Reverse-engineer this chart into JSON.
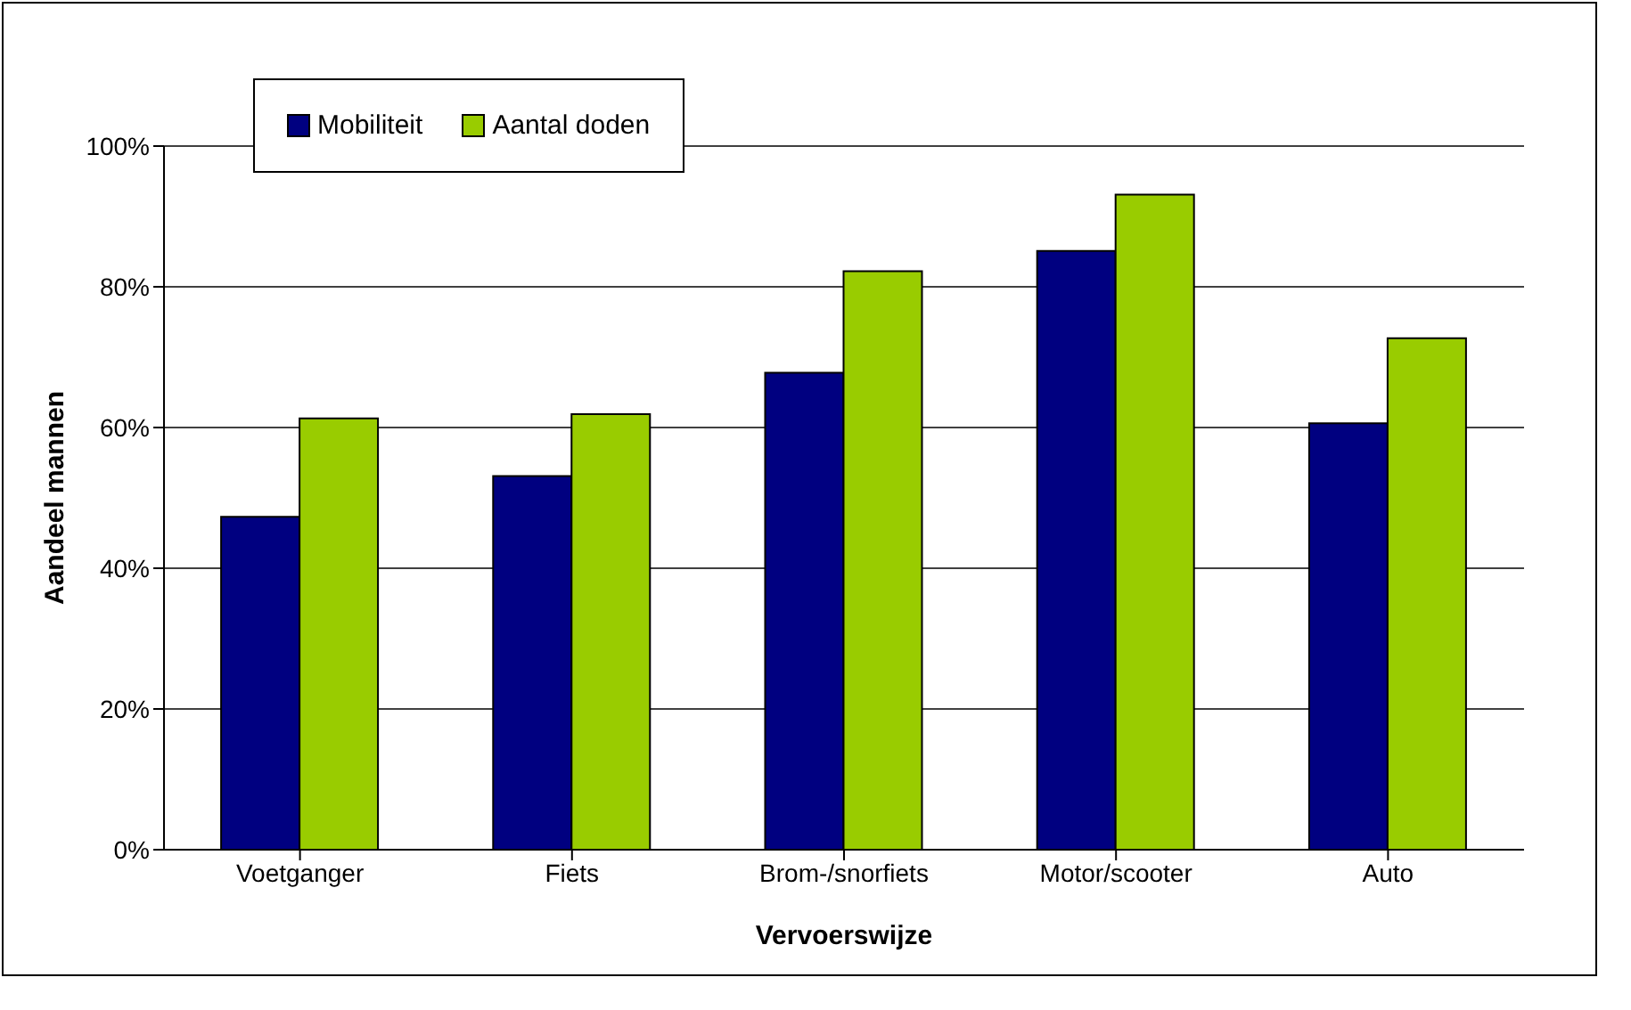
{
  "chart_data": {
    "type": "bar",
    "xlabel": "Vervoerswijze",
    "ylabel": "Aandeel mannen",
    "categories": [
      "Voetganger",
      "Fiets",
      "Brom-/snorfiets",
      "Motor/scooter",
      "Auto"
    ],
    "series": [
      {
        "name": "Mobiliteit",
        "color": "#000080",
        "values": [
          47.3,
          53.1,
          67.8,
          85.1,
          60.6
        ]
      },
      {
        "name": "Aantal doden",
        "color": "#99cc00",
        "values": [
          61.3,
          61.9,
          82.2,
          93.1,
          72.7
        ]
      }
    ],
    "ylim": [
      0,
      100
    ],
    "yticks": [
      {
        "value": 0,
        "label": "0%"
      },
      {
        "value": 20,
        "label": "20%"
      },
      {
        "value": 40,
        "label": "40%"
      },
      {
        "value": 60,
        "label": "60%"
      },
      {
        "value": 80,
        "label": "80%"
      },
      {
        "value": 100,
        "label": "100%"
      }
    ],
    "grid": "y",
    "legend": "top left"
  }
}
